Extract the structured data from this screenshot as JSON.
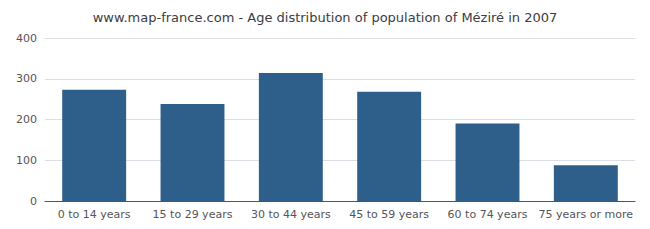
{
  "chart_data": {
    "type": "bar",
    "title": "www.map-france.com - Age distribution of population of Méziré in 2007",
    "categories": [
      "0 to 14 years",
      "15 to 29 years",
      "30 to 44 years",
      "45 to 59 years",
      "60 to 74 years",
      "75 years or more"
    ],
    "values": [
      273,
      238,
      314,
      268,
      190,
      88
    ],
    "color": "#2e5f8a",
    "ylim": [
      0,
      400
    ],
    "yticks": [
      0,
      100,
      200,
      300,
      400
    ],
    "grid": true
  }
}
